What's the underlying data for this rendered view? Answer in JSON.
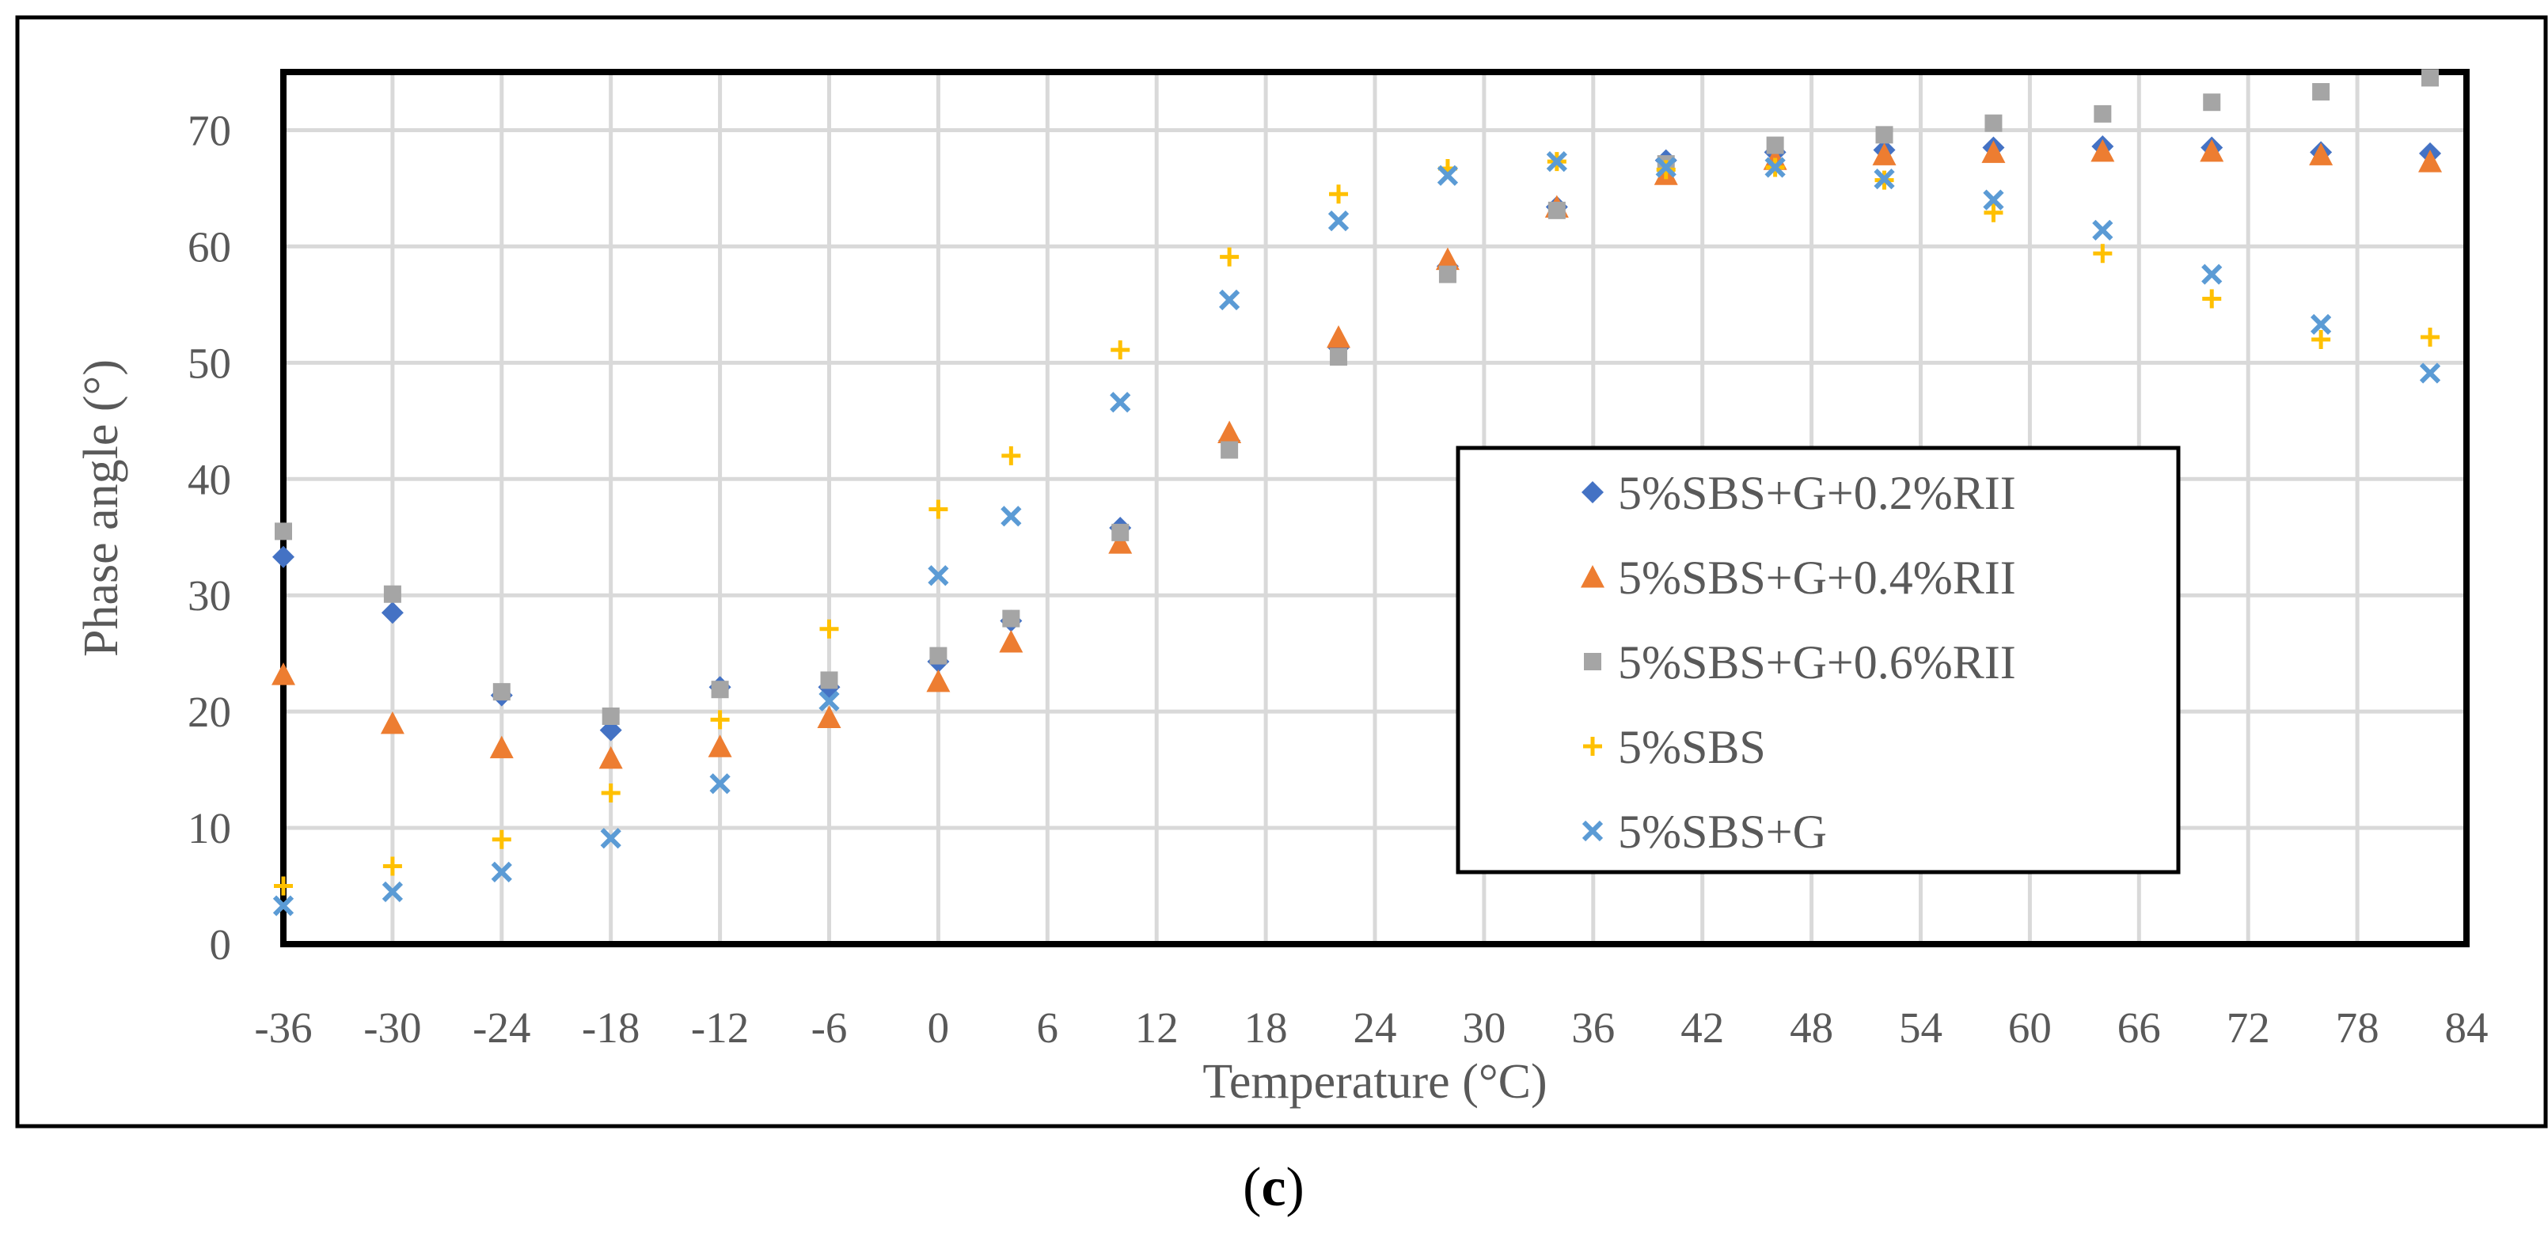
{
  "chart_data": {
    "type": "scatter",
    "title": "",
    "xlabel": "Temperature (°C)",
    "ylabel": "Phase angle (°)",
    "caption_open": "(",
    "caption_letter": "c",
    "caption_close": ")",
    "xlim": [
      -36,
      84
    ],
    "ylim": [
      0,
      75
    ],
    "xticks": [
      -36,
      -30,
      -24,
      -18,
      -12,
      -6,
      0,
      6,
      12,
      18,
      24,
      30,
      36,
      42,
      48,
      54,
      60,
      66,
      72,
      78,
      84
    ],
    "xtick_labels": [
      "-36",
      "-30",
      "-24",
      "-18",
      "-12",
      "-6",
      "0",
      "6",
      "12",
      "18",
      "24",
      "30",
      "36",
      "42",
      "48",
      "54",
      "60",
      "66",
      "72",
      "78",
      "84"
    ],
    "yticks": [
      0,
      10,
      20,
      30,
      40,
      50,
      60,
      70
    ],
    "ytick_labels": [
      "0",
      "10",
      "20",
      "30",
      "40",
      "50",
      "60",
      "70"
    ],
    "grid": true,
    "legend_position": "center-right",
    "x": [
      -36,
      -30,
      -24,
      -18,
      -12,
      -6,
      0,
      4,
      10,
      16,
      22,
      28,
      34,
      40,
      46,
      52,
      58,
      64,
      70,
      76,
      82
    ],
    "series": [
      {
        "name": "5%SBS+G+0.2%RII",
        "marker": "diamond",
        "color": "#4472C4",
        "values": [
          33.3,
          28.5,
          21.4,
          18.4,
          22.1,
          22.1,
          24.3,
          27.8,
          35.8,
          43.3,
          51.3,
          58.3,
          63.4,
          67.4,
          68.1,
          68.3,
          68.5,
          68.6,
          68.5,
          68.1,
          68.0
        ]
      },
      {
        "name": "5%SBS+G+0.4%RII",
        "marker": "triangle",
        "color": "#ED7D31",
        "values": [
          23.2,
          19.0,
          16.9,
          16.0,
          17.0,
          19.5,
          22.6,
          26.0,
          34.5,
          44.0,
          52.2,
          58.9,
          63.4,
          66.2,
          67.5,
          67.9,
          68.1,
          68.2,
          68.2,
          67.9,
          67.3
        ]
      },
      {
        "name": "5%SBS+G+0.6%RII",
        "marker": "square",
        "color": "#A5A5A5",
        "values": [
          35.5,
          30.1,
          21.7,
          19.6,
          21.9,
          22.7,
          24.8,
          28.0,
          35.4,
          42.5,
          50.5,
          57.6,
          63.1,
          67.1,
          68.7,
          69.6,
          70.6,
          71.4,
          72.4,
          73.3,
          74.5
        ]
      },
      {
        "name": "5%SBS",
        "marker": "plus",
        "color": "#FFC000",
        "values": [
          5.0,
          6.7,
          9.0,
          13.0,
          19.3,
          27.1,
          37.4,
          42.0,
          51.1,
          59.1,
          64.5,
          66.7,
          67.3,
          66.6,
          66.8,
          65.7,
          62.9,
          59.4,
          55.5,
          52.0,
          52.2
        ]
      },
      {
        "name": "5%SBS+G",
        "marker": "x",
        "color": "#5B9BD5",
        "values": [
          3.3,
          4.5,
          6.2,
          9.1,
          13.8,
          20.9,
          31.7,
          36.8,
          46.6,
          55.4,
          62.2,
          66.1,
          67.3,
          66.8,
          66.8,
          65.8,
          64.0,
          61.4,
          57.6,
          53.3,
          49.1
        ]
      }
    ]
  }
}
